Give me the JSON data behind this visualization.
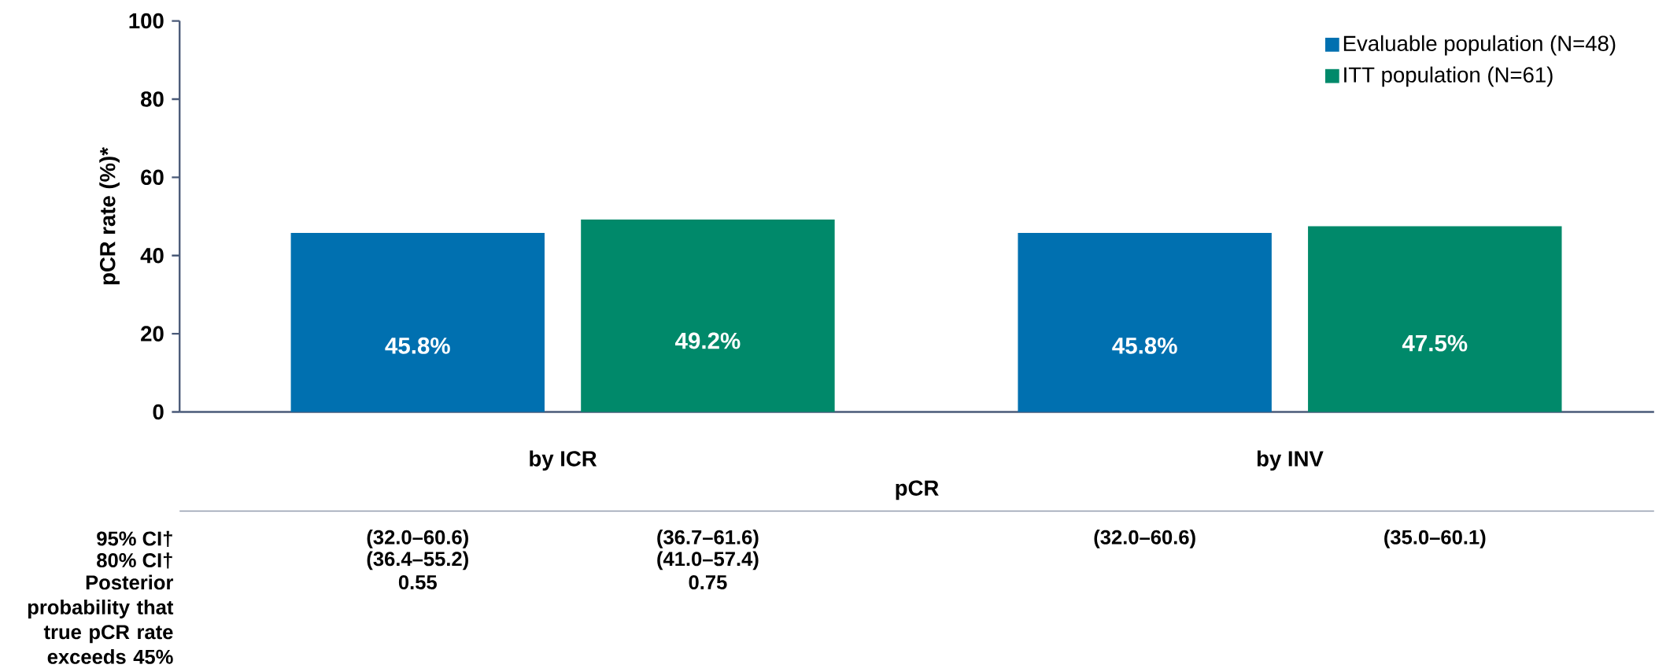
{
  "chart_data": {
    "type": "bar",
    "xlabel": "pCR",
    "ylabel": "pCR rate (%)*",
    "categories": [
      "by ICR",
      "by INV"
    ],
    "series": [
      {
        "name": "Evaluable population (N=48)",
        "color": "#0070b0",
        "values": [
          45.8,
          45.8
        ],
        "value_labels": [
          "45.8%",
          "45.8%"
        ]
      },
      {
        "name": "ITT population (N=61)",
        "color": "#00896a",
        "values": [
          49.2,
          47.5
        ],
        "value_labels": [
          "49.2%",
          "47.5%"
        ]
      }
    ],
    "ylim": [
      0,
      100
    ],
    "yticks": [
      0,
      20,
      40,
      60,
      80,
      100
    ],
    "legend": "top right",
    "annotations": [
      "95% CI†",
      "80% CI†",
      "Posterior probability that true pCR rate exceeds 45%",
      "(32.0–60.6)",
      "(36.7–61.6)",
      "(32.0–60.6)",
      "(35.0–60.1)",
      "(36.4–55.2)",
      "(41.0–57.4)",
      "0.55",
      "0.75"
    ]
  }
}
